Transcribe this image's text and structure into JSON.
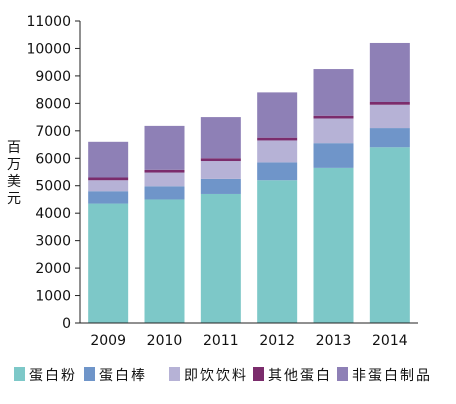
{
  "chart_data": {
    "type": "bar",
    "stacked": true,
    "title": "",
    "xlabel": "",
    "ylabel": "百万美元",
    "ylim": [
      0,
      11000
    ],
    "yticks": [
      0,
      1000,
      2000,
      3000,
      4000,
      5000,
      6000,
      7000,
      8000,
      9000,
      10000,
      11000
    ],
    "grid": false,
    "legend_position": "bottom",
    "categories": [
      "2009",
      "2010",
      "2011",
      "2012",
      "2013",
      "2014"
    ],
    "series": [
      {
        "name": "蛋白粉",
        "color": "#7dc8c8",
        "values": [
          4350,
          4500,
          4700,
          5200,
          5650,
          6400
        ]
      },
      {
        "name": "蛋白棒",
        "color": "#6f95c9",
        "values": [
          450,
          480,
          550,
          650,
          900,
          700
        ]
      },
      {
        "name": "即饮饮料",
        "color": "#b6b2d6",
        "values": [
          400,
          500,
          650,
          800,
          900,
          850
        ]
      },
      {
        "name": "其他蛋白",
        "color": "#7b2c6c",
        "values": [
          100,
          100,
          100,
          100,
          100,
          100
        ]
      },
      {
        "name": "非蛋白制品",
        "color": "#8e80b6",
        "values": [
          1300,
          1600,
          1500,
          1650,
          1700,
          2150
        ]
      }
    ]
  }
}
